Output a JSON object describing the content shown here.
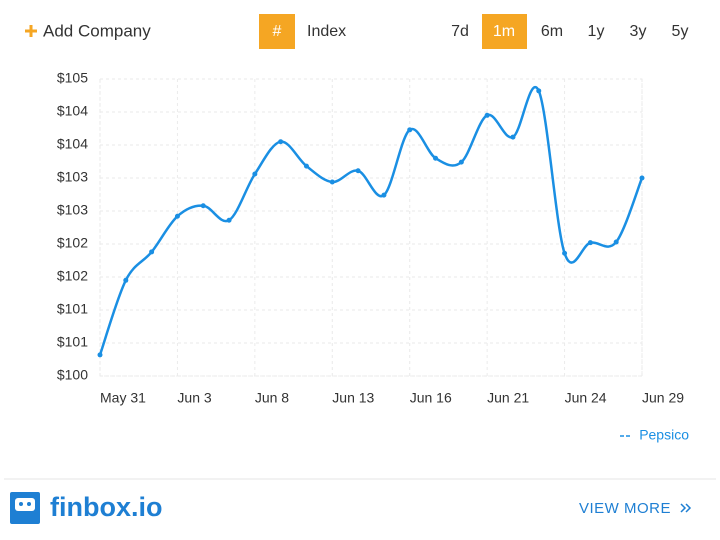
{
  "toolbar": {
    "add_company": "Add Company",
    "index_symbol": "#",
    "index": "Index",
    "ranges": [
      "7d",
      "1m",
      "6m",
      "1y",
      "3y",
      "5y"
    ],
    "active_range": "1m",
    "accent": "#f5a623"
  },
  "chart_data": {
    "type": "line",
    "categories": [
      "May 31",
      null,
      null,
      "Jun 3",
      null,
      null,
      "Jun 8",
      null,
      null,
      "Jun 13",
      null,
      null,
      "Jun 16",
      null,
      null,
      "Jun 21",
      null,
      null,
      "Jun 24",
      null,
      null,
      "Jun 29"
    ],
    "series": [
      {
        "name": "Pepsico",
        "color": "#1a8fe3",
        "values": [
          100.32,
          101.45,
          101.88,
          102.42,
          102.58,
          102.36,
          103.06,
          103.55,
          103.18,
          102.94,
          103.11,
          102.74,
          103.73,
          103.3,
          103.24,
          103.95,
          103.62,
          104.32,
          101.86,
          102.02,
          102.03,
          103.0
        ]
      }
    ],
    "ylim": [
      100,
      104.5
    ],
    "yticks": [
      {
        "value": 100,
        "label": "$100"
      },
      {
        "value": 100.5,
        "label": "$101"
      },
      {
        "value": 101,
        "label": "$101"
      },
      {
        "value": 101.5,
        "label": "$102"
      },
      {
        "value": 102,
        "label": "$102"
      },
      {
        "value": 102.5,
        "label": "$103"
      },
      {
        "value": 103,
        "label": "$103"
      },
      {
        "value": 103.5,
        "label": "$104"
      },
      {
        "value": 104,
        "label": "$104"
      },
      {
        "value": 104.5,
        "label": "$105"
      }
    ],
    "grid": true,
    "legend": "bottom-right"
  },
  "footer": {
    "brand": "finbox.io",
    "view_more": "VIEW MORE",
    "color": "#1e7fd3"
  }
}
